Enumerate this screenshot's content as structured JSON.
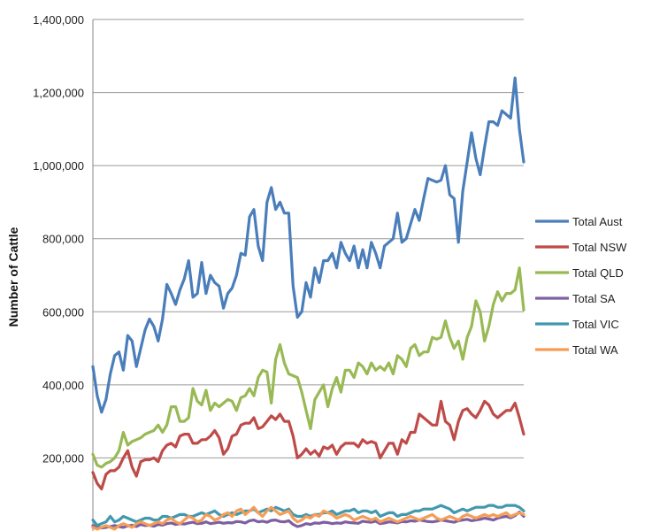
{
  "chart_data": {
    "type": "line",
    "title": "",
    "xlabel": "",
    "ylabel": "Number of Cattle",
    "ylim": [
      0,
      1400000
    ],
    "yticks": [
      {
        "value": 200000,
        "label": "200,000"
      },
      {
        "value": 400000,
        "label": "400,000"
      },
      {
        "value": 600000,
        "label": "600,000"
      },
      {
        "value": 800000,
        "label": "800,000"
      },
      {
        "value": 1000000,
        "label": "1,000,000"
      },
      {
        "value": 1200000,
        "label": "1,200,000"
      },
      {
        "value": 1400000,
        "label": "1,400,000"
      }
    ],
    "grid": true,
    "legend_position": "right",
    "series": [
      {
        "name": "Total Aust",
        "color": "#4a7ebb",
        "values": [
          450000,
          370000,
          325000,
          360000,
          430000,
          480000,
          490000,
          440000,
          535000,
          520000,
          450000,
          500000,
          550000,
          580000,
          560000,
          520000,
          580000,
          675000,
          650000,
          620000,
          660000,
          690000,
          740000,
          640000,
          650000,
          735000,
          650000,
          700000,
          680000,
          670000,
          610000,
          650000,
          665000,
          700000,
          760000,
          755000,
          860000,
          880000,
          780000,
          740000,
          900000,
          940000,
          880000,
          900000,
          870000,
          870000,
          670000,
          585000,
          600000,
          680000,
          640000,
          720000,
          680000,
          740000,
          740000,
          760000,
          720000,
          790000,
          760000,
          740000,
          780000,
          720000,
          770000,
          720000,
          790000,
          760000,
          720000,
          780000,
          790000,
          800000,
          870000,
          790000,
          800000,
          840000,
          880000,
          850000,
          910000,
          965000,
          960000,
          955000,
          960000,
          1000000,
          920000,
          910000,
          790000,
          930000,
          1010000,
          1090000,
          1020000,
          975000,
          1050000,
          1120000,
          1120000,
          1110000,
          1150000,
          1140000,
          1130000,
          1240000,
          1100000,
          1010000
        ]
      },
      {
        "name": "Total NSW",
        "color": "#be4b48",
        "values": [
          160000,
          130000,
          115000,
          155000,
          165000,
          165000,
          175000,
          200000,
          220000,
          175000,
          150000,
          190000,
          195000,
          195000,
          200000,
          190000,
          220000,
          235000,
          240000,
          230000,
          260000,
          265000,
          265000,
          240000,
          240000,
          250000,
          250000,
          260000,
          275000,
          255000,
          210000,
          225000,
          260000,
          265000,
          290000,
          295000,
          295000,
          310000,
          280000,
          285000,
          300000,
          315000,
          305000,
          320000,
          300000,
          300000,
          260000,
          200000,
          210000,
          225000,
          210000,
          220000,
          205000,
          230000,
          225000,
          235000,
          210000,
          230000,
          240000,
          240000,
          240000,
          230000,
          250000,
          240000,
          245000,
          240000,
          200000,
          220000,
          240000,
          240000,
          210000,
          250000,
          240000,
          270000,
          270000,
          320000,
          310000,
          300000,
          290000,
          290000,
          355000,
          300000,
          290000,
          250000,
          300000,
          330000,
          335000,
          320000,
          310000,
          330000,
          355000,
          345000,
          320000,
          310000,
          320000,
          330000,
          330000,
          350000,
          310000,
          265000
        ]
      },
      {
        "name": "Total QLD",
        "color": "#98b954",
        "values": [
          210000,
          180000,
          175000,
          185000,
          190000,
          200000,
          220000,
          270000,
          235000,
          245000,
          250000,
          255000,
          265000,
          270000,
          275000,
          290000,
          270000,
          290000,
          340000,
          340000,
          300000,
          300000,
          310000,
          390000,
          355000,
          345000,
          385000,
          330000,
          350000,
          340000,
          350000,
          360000,
          355000,
          330000,
          365000,
          370000,
          390000,
          370000,
          420000,
          440000,
          435000,
          350000,
          470000,
          510000,
          460000,
          430000,
          425000,
          420000,
          380000,
          330000,
          280000,
          360000,
          380000,
          400000,
          340000,
          390000,
          420000,
          380000,
          440000,
          440000,
          420000,
          460000,
          450000,
          430000,
          460000,
          440000,
          450000,
          440000,
          460000,
          430000,
          480000,
          470000,
          450000,
          500000,
          510000,
          480000,
          490000,
          490000,
          530000,
          525000,
          530000,
          575000,
          530000,
          500000,
          520000,
          470000,
          530000,
          560000,
          630000,
          600000,
          520000,
          560000,
          620000,
          655000,
          630000,
          650000,
          650000,
          660000,
          720000,
          605000
        ]
      },
      {
        "name": "Total SA",
        "color": "#7d60a0",
        "values": [
          15000,
          13000,
          8000,
          10000,
          12000,
          15000,
          12000,
          10000,
          14000,
          16000,
          12000,
          18000,
          15000,
          16000,
          13000,
          18000,
          16000,
          20000,
          22000,
          18000,
          20000,
          19000,
          22000,
          24000,
          20000,
          21000,
          25000,
          20000,
          22000,
          24000,
          21000,
          23000,
          22000,
          26000,
          25000,
          22000,
          28000,
          30000,
          25000,
          27000,
          24000,
          29000,
          30000,
          26000,
          25000,
          28000,
          18000,
          12000,
          15000,
          20000,
          18000,
          22000,
          21000,
          24000,
          23000,
          20000,
          22000,
          21000,
          25000,
          23000,
          22000,
          21000,
          27000,
          25000,
          24000,
          27000,
          20000,
          22000,
          25000,
          24000,
          22000,
          26000,
          25000,
          28000,
          27000,
          30000,
          28000,
          26000,
          25000,
          27000,
          30000,
          28000,
          26000,
          24000,
          28000,
          30000,
          32000,
          28000,
          30000,
          32000,
          35000,
          33000,
          30000,
          35000,
          38000,
          40000,
          36000,
          42000,
          52000,
          40000
        ]
      },
      {
        "name": "Total VIC",
        "color": "#4198af",
        "values": [
          30000,
          15000,
          20000,
          25000,
          40000,
          25000,
          30000,
          40000,
          35000,
          30000,
          25000,
          30000,
          35000,
          35000,
          30000,
          30000,
          40000,
          40000,
          35000,
          40000,
          45000,
          45000,
          40000,
          40000,
          45000,
          50000,
          45000,
          50000,
          55000,
          45000,
          40000,
          45000,
          50000,
          45000,
          50000,
          55000,
          55000,
          60000,
          50000,
          55000,
          60000,
          55000,
          65000,
          60000,
          55000,
          60000,
          45000,
          40000,
          40000,
          45000,
          40000,
          45000,
          45000,
          50000,
          50000,
          55000,
          45000,
          50000,
          55000,
          55000,
          60000,
          50000,
          55000,
          55000,
          50000,
          55000,
          40000,
          45000,
          50000,
          50000,
          40000,
          45000,
          45000,
          50000,
          55000,
          55000,
          60000,
          60000,
          60000,
          65000,
          70000,
          65000,
          60000,
          50000,
          55000,
          60000,
          55000,
          60000,
          65000,
          65000,
          65000,
          70000,
          70000,
          65000,
          65000,
          70000,
          70000,
          70000,
          65000,
          55000
        ]
      },
      {
        "name": "Total WA",
        "color": "#f59d56",
        "values": [
          10000,
          5000,
          10000,
          15000,
          10000,
          5000,
          15000,
          20000,
          15000,
          10000,
          20000,
          25000,
          20000,
          15000,
          20000,
          25000,
          20000,
          30000,
          35000,
          25000,
          20000,
          30000,
          40000,
          35000,
          25000,
          30000,
          45000,
          40000,
          30000,
          35000,
          45000,
          50000,
          40000,
          55000,
          60000,
          45000,
          55000,
          65000,
          50000,
          40000,
          55000,
          65000,
          55000,
          45000,
          50000,
          55000,
          35000,
          25000,
          30000,
          40000,
          35000,
          45000,
          40000,
          55000,
          50000,
          45000,
          35000,
          40000,
          45000,
          40000,
          30000,
          35000,
          40000,
          35000,
          30000,
          35000,
          25000,
          30000,
          35000,
          30000,
          25000,
          30000,
          35000,
          40000,
          35000,
          30000,
          35000,
          40000,
          45000,
          35000,
          30000,
          35000,
          40000,
          35000,
          30000,
          40000,
          45000,
          40000,
          35000,
          40000,
          45000,
          40000,
          45000,
          40000,
          45000,
          50000,
          40000,
          45000,
          50000,
          45000
        ]
      }
    ]
  }
}
